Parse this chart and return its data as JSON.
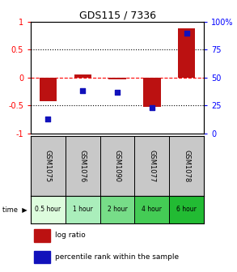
{
  "title": "GDS115 / 7336",
  "samples": [
    "GSM1075",
    "GSM1076",
    "GSM1090",
    "GSM1077",
    "GSM1078"
  ],
  "time_labels": [
    "0.5 hour",
    "1 hour",
    "2 hour",
    "4 hour",
    "6 hour"
  ],
  "time_colors": [
    "#ddfcdd",
    "#aaeebb",
    "#77dd88",
    "#44cc55",
    "#22bb33"
  ],
  "log_ratios": [
    -0.42,
    0.05,
    -0.03,
    -0.53,
    0.88
  ],
  "percentile_ranks": [
    13,
    38,
    37,
    23,
    90
  ],
  "bar_color": "#bb1111",
  "dot_color": "#1111bb",
  "ylim_left": [
    -1,
    1
  ],
  "ylim_right": [
    0,
    100
  ],
  "yticks_left": [
    -1,
    -0.5,
    0,
    0.5,
    1
  ],
  "yticks_right": [
    0,
    25,
    50,
    75,
    100
  ],
  "hline_dotted": [
    -0.5,
    0.5
  ],
  "hline_dashed": 0,
  "legend_log_ratio": "log ratio",
  "legend_percentile": "percentile rank within the sample",
  "sample_bg": "#c8c8c8",
  "title_fontsize": 9,
  "tick_fontsize": 7,
  "bar_width": 0.5
}
